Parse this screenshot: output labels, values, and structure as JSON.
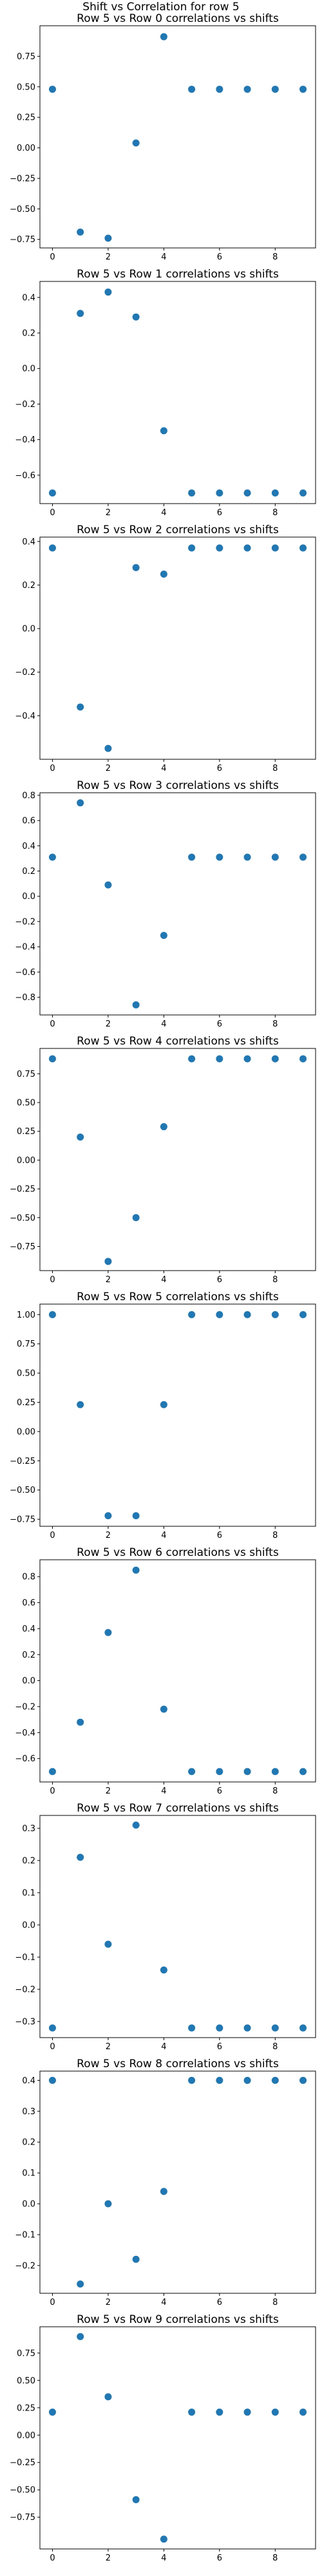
{
  "figure": {
    "suptitle": "Shift vs Correlation for row 5",
    "marker_color": "#1f77b4"
  },
  "chart_data": [
    {
      "type": "scatter",
      "title": "Row 5 vs Row 0 correlations vs shifts",
      "x": [
        0,
        1,
        2,
        3,
        4,
        5,
        6,
        7,
        8,
        9
      ],
      "y": [
        0.48,
        -0.69,
        -0.74,
        0.04,
        0.91,
        0.48,
        0.48,
        0.48,
        0.48,
        0.48
      ],
      "xlim": [
        -0.45,
        9.45
      ],
      "ylim": [
        -0.82,
        1.0
      ],
      "xticks": [
        0,
        2,
        4,
        6,
        8
      ],
      "yticks": [
        -0.75,
        -0.5,
        -0.25,
        0.0,
        0.25,
        0.5,
        0.75
      ],
      "ytick_labels": [
        "−0.75",
        "−0.50",
        "−0.25",
        "0.00",
        "0.25",
        "0.50",
        "0.75"
      ]
    },
    {
      "type": "scatter",
      "title": "Row 5 vs Row 1 correlations vs shifts",
      "x": [
        0,
        1,
        2,
        3,
        4,
        5,
        6,
        7,
        8,
        9
      ],
      "y": [
        -0.7,
        0.31,
        0.43,
        0.29,
        -0.35,
        -0.7,
        -0.7,
        -0.7,
        -0.7,
        -0.7
      ],
      "xlim": [
        -0.45,
        9.45
      ],
      "ylim": [
        -0.76,
        0.49
      ],
      "xticks": [
        0,
        2,
        4,
        6,
        8
      ],
      "yticks": [
        -0.6,
        -0.4,
        -0.2,
        0.0,
        0.2,
        0.4
      ],
      "ytick_labels": [
        "−0.6",
        "−0.4",
        "−0.2",
        "0.0",
        "0.2",
        "0.4"
      ]
    },
    {
      "type": "scatter",
      "title": "Row 5 vs Row 2 correlations vs shifts",
      "x": [
        0,
        1,
        2,
        3,
        4,
        5,
        6,
        7,
        8,
        9
      ],
      "y": [
        0.37,
        -0.36,
        -0.55,
        0.28,
        0.25,
        0.37,
        0.37,
        0.37,
        0.37,
        0.37
      ],
      "xlim": [
        -0.45,
        9.45
      ],
      "ylim": [
        -0.6,
        0.42
      ],
      "xticks": [
        0,
        2,
        4,
        6,
        8
      ],
      "yticks": [
        -0.4,
        -0.2,
        0.0,
        0.2,
        0.4
      ],
      "ytick_labels": [
        "−0.4",
        "−0.2",
        "0.0",
        "0.2",
        "0.4"
      ]
    },
    {
      "type": "scatter",
      "title": "Row 5 vs Row 3 correlations vs shifts",
      "x": [
        0,
        1,
        2,
        3,
        4,
        5,
        6,
        7,
        8,
        9
      ],
      "y": [
        0.31,
        0.74,
        0.09,
        -0.86,
        -0.31,
        0.31,
        0.31,
        0.31,
        0.31,
        0.31
      ],
      "xlim": [
        -0.45,
        9.45
      ],
      "ylim": [
        -0.94,
        0.82
      ],
      "xticks": [
        0,
        2,
        4,
        6,
        8
      ],
      "yticks": [
        -0.8,
        -0.6,
        -0.4,
        -0.2,
        0.0,
        0.2,
        0.4,
        0.6,
        0.8
      ],
      "ytick_labels": [
        "−0.8",
        "−0.6",
        "−0.4",
        "−0.2",
        "0.0",
        "0.2",
        "0.4",
        "0.6",
        "0.8"
      ]
    },
    {
      "type": "scatter",
      "title": "Row 5 vs Row 4 correlations vs shifts",
      "x": [
        0,
        1,
        2,
        3,
        4,
        5,
        6,
        7,
        8,
        9
      ],
      "y": [
        0.88,
        0.2,
        -0.88,
        -0.5,
        0.29,
        0.88,
        0.88,
        0.88,
        0.88,
        0.88
      ],
      "xlim": [
        -0.45,
        9.45
      ],
      "ylim": [
        -0.96,
        0.97
      ],
      "xticks": [
        0,
        2,
        4,
        6,
        8
      ],
      "yticks": [
        -0.75,
        -0.5,
        -0.25,
        0.0,
        0.25,
        0.5,
        0.75
      ],
      "ytick_labels": [
        "−0.75",
        "−0.50",
        "−0.25",
        "0.00",
        "0.25",
        "0.50",
        "0.75"
      ]
    },
    {
      "type": "scatter",
      "title": "Row 5 vs Row 5 correlations vs shifts",
      "x": [
        0,
        1,
        2,
        3,
        4,
        5,
        6,
        7,
        8,
        9
      ],
      "y": [
        1.0,
        0.23,
        -0.72,
        -0.72,
        0.23,
        1.0,
        1.0,
        1.0,
        1.0,
        1.0
      ],
      "xlim": [
        -0.45,
        9.45
      ],
      "ylim": [
        -0.81,
        1.09
      ],
      "xticks": [
        0,
        2,
        4,
        6,
        8
      ],
      "yticks": [
        -0.75,
        -0.5,
        -0.25,
        0.0,
        0.25,
        0.5,
        0.75,
        1.0
      ],
      "ytick_labels": [
        "−0.75",
        "−0.50",
        "−0.25",
        "0.00",
        "0.25",
        "0.50",
        "0.75",
        "1.00"
      ]
    },
    {
      "type": "scatter",
      "title": "Row 5 vs Row 6 correlations vs shifts",
      "x": [
        0,
        1,
        2,
        3,
        4,
        5,
        6,
        7,
        8,
        9
      ],
      "y": [
        -0.7,
        -0.32,
        0.37,
        0.85,
        -0.22,
        -0.7,
        -0.7,
        -0.7,
        -0.7,
        -0.7
      ],
      "xlim": [
        -0.45,
        9.45
      ],
      "ylim": [
        -0.78,
        0.93
      ],
      "xticks": [
        0,
        2,
        4,
        6,
        8
      ],
      "yticks": [
        -0.6,
        -0.4,
        -0.2,
        0.0,
        0.2,
        0.4,
        0.6,
        0.8
      ],
      "ytick_labels": [
        "−0.6",
        "−0.4",
        "−0.2",
        "0.0",
        "0.2",
        "0.4",
        "0.6",
        "0.8"
      ]
    },
    {
      "type": "scatter",
      "title": "Row 5 vs Row 7 correlations vs shifts",
      "x": [
        0,
        1,
        2,
        3,
        4,
        5,
        6,
        7,
        8,
        9
      ],
      "y": [
        -0.32,
        0.21,
        -0.06,
        0.31,
        -0.14,
        -0.32,
        -0.32,
        -0.32,
        -0.32,
        -0.32
      ],
      "xlim": [
        -0.45,
        9.45
      ],
      "ylim": [
        -0.35,
        0.34
      ],
      "xticks": [
        0,
        2,
        4,
        6,
        8
      ],
      "yticks": [
        -0.3,
        -0.2,
        -0.1,
        0.0,
        0.1,
        0.2,
        0.3
      ],
      "ytick_labels": [
        "−0.3",
        "−0.2",
        "−0.1",
        "0.0",
        "0.1",
        "0.2",
        "0.3"
      ]
    },
    {
      "type": "scatter",
      "title": "Row 5 vs Row 8 correlations vs shifts",
      "x": [
        0,
        1,
        2,
        3,
        4,
        5,
        6,
        7,
        8,
        9
      ],
      "y": [
        0.4,
        -0.26,
        0.0,
        -0.18,
        0.04,
        0.4,
        0.4,
        0.4,
        0.4,
        0.4
      ],
      "xlim": [
        -0.45,
        9.45
      ],
      "ylim": [
        -0.29,
        0.43
      ],
      "xticks": [
        0,
        2,
        4,
        6,
        8
      ],
      "yticks": [
        -0.2,
        -0.1,
        0.0,
        0.1,
        0.2,
        0.3,
        0.4
      ],
      "ytick_labels": [
        "−0.2",
        "−0.1",
        "0.0",
        "0.1",
        "0.2",
        "0.3",
        "0.4"
      ]
    },
    {
      "type": "scatter",
      "title": "Row 5 vs Row 9 correlations vs shifts",
      "x": [
        0,
        1,
        2,
        3,
        4,
        5,
        6,
        7,
        8,
        9
      ],
      "y": [
        0.21,
        0.9,
        0.35,
        -0.59,
        -0.95,
        0.21,
        0.21,
        0.21,
        0.21,
        0.21
      ],
      "xlim": [
        -0.45,
        9.45
      ],
      "ylim": [
        -1.04,
        0.99
      ],
      "xticks": [
        0,
        2,
        4,
        6,
        8
      ],
      "yticks": [
        -0.75,
        -0.5,
        -0.25,
        0.0,
        0.25,
        0.5,
        0.75
      ],
      "ytick_labels": [
        "−0.75",
        "−0.50",
        "−0.25",
        "0.00",
        "0.25",
        "0.50",
        "0.75"
      ]
    }
  ]
}
